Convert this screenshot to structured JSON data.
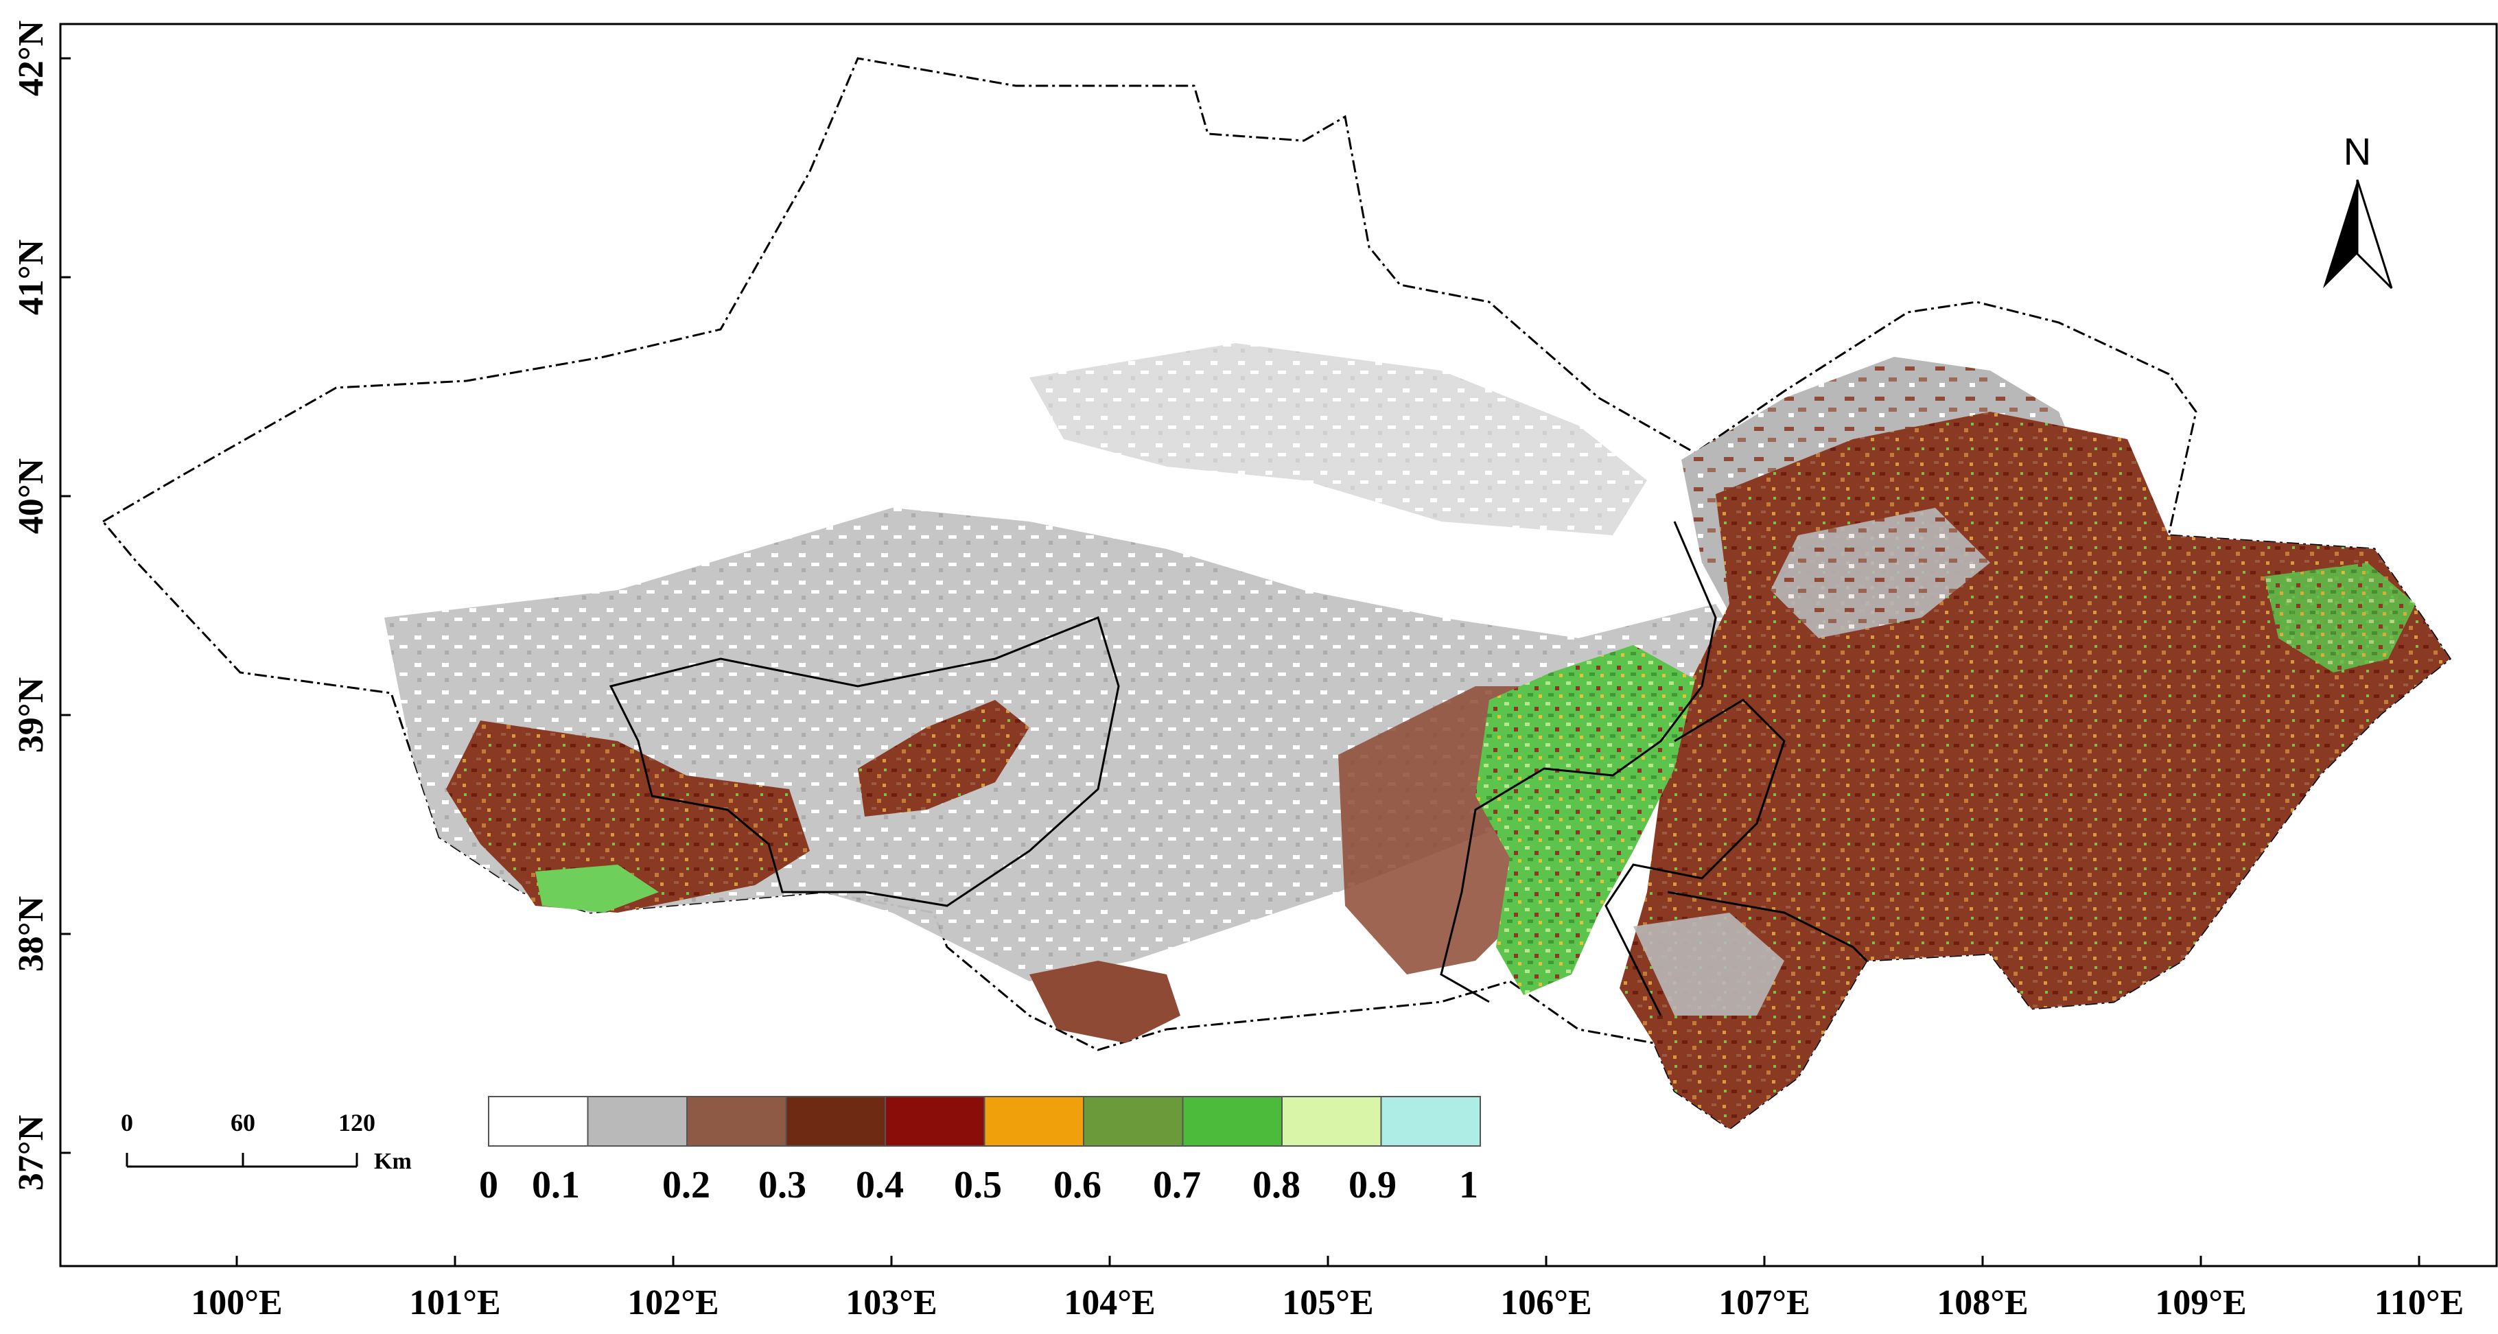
{
  "map": {
    "lon_ticks": [
      "100°E",
      "101°E",
      "102°E",
      "103°E",
      "104°E",
      "105°E",
      "106°E",
      "107°E",
      "108°E",
      "109°E",
      "110°E"
    ],
    "lat_ticks": [
      "37°N",
      "38°N",
      "39°N",
      "40°N",
      "41°N",
      "42°N"
    ],
    "north_arrow": {
      "label": "N",
      "icon": "north-arrow-icon"
    },
    "scale_bar": {
      "labels": [
        "0",
        "60",
        "120"
      ],
      "unit": "Km"
    },
    "legend": {
      "labels": [
        "0",
        "0.1",
        "0.2",
        "0.3",
        "0.4",
        "0.5",
        "0.6",
        "0.7",
        "0.8",
        "0.9",
        "1"
      ],
      "colors": [
        "#ffffff",
        "#b9b9b9",
        "#8e5a45",
        "#6e2a12",
        "#8a0d0a",
        "#f0a00a",
        "#6a9a3a",
        "#4cbb3c",
        "#d9f5a8",
        "#aeece6"
      ]
    },
    "palette": {
      "background_region": "#ffffff",
      "low_gray": "#bdbdbd",
      "brown": "#8e4a35",
      "dark_red": "#7c1f10",
      "green": "#6ecf5a",
      "orange": "#e0a030"
    }
  }
}
